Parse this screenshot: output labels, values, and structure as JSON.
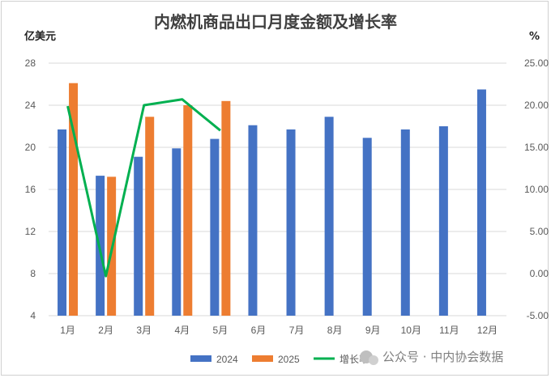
{
  "chart_data": {
    "type": "bar",
    "title": "内燃机商品出口月度金额及增长率",
    "categories": [
      "1月",
      "2月",
      "3月",
      "4月",
      "5月",
      "6月",
      "7月",
      "8月",
      "9月",
      "10月",
      "11月",
      "12月"
    ],
    "series": [
      {
        "name": "2024",
        "type": "bar",
        "axis": "left",
        "color": "#4472c4",
        "values": [
          21.7,
          17.3,
          19.1,
          19.9,
          20.8,
          22.1,
          21.7,
          22.9,
          20.9,
          21.7,
          22.0,
          25.5
        ]
      },
      {
        "name": "2025",
        "type": "bar",
        "axis": "left",
        "color": "#ed7d31",
        "values": [
          26.1,
          17.2,
          22.9,
          24.0,
          24.4,
          null,
          null,
          null,
          null,
          null,
          null,
          null
        ]
      },
      {
        "name": "增长率",
        "type": "line",
        "axis": "right",
        "color": "#00b050",
        "values": [
          19.9,
          -0.3,
          20.0,
          20.7,
          17.0,
          null,
          null,
          null,
          null,
          null,
          null,
          null
        ]
      }
    ],
    "ylabel_left": "亿美元",
    "ylabel_right": "%",
    "ylim_left": [
      4,
      28
    ],
    "yticks_left": [
      "4",
      "8",
      "12",
      "16",
      "20",
      "24",
      "28"
    ],
    "ylim_right": [
      -5,
      25
    ],
    "yticks_right": [
      "-5.00",
      "0.00",
      "5.00",
      "10.00",
      "15.00",
      "20.00",
      "25.00"
    ],
    "grid": true,
    "legend_position": "bottom"
  },
  "watermark": "公众号 · 中内协会数据"
}
